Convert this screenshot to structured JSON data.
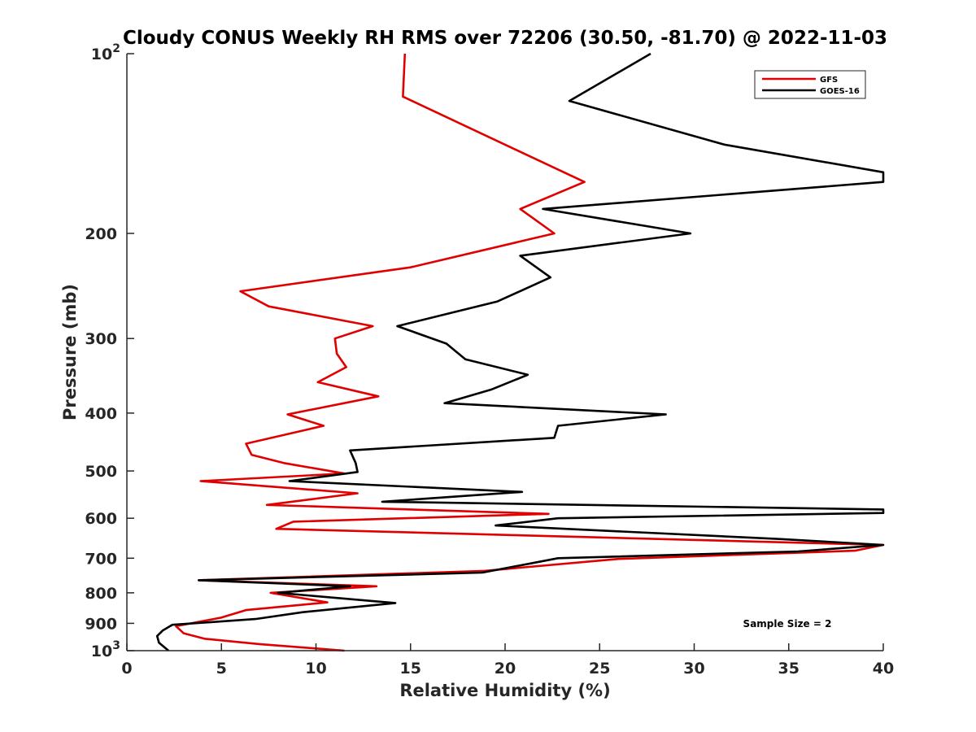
{
  "chart_data": {
    "type": "line",
    "title": "Cloudy CONUS Weekly RH RMS over 72206 (30.50, -81.70) @ 2022-11-03",
    "xlabel": "Relative Humidity (%)",
    "ylabel": "Pressure (mb)",
    "xlim": [
      0,
      40
    ],
    "ylim": [
      100,
      1000
    ],
    "yscale": "log",
    "y_reversed": true,
    "grid": false,
    "legend_position": "top-right",
    "x_ticks": [
      "0",
      "5",
      "10",
      "15",
      "20",
      "25",
      "30",
      "35",
      "40"
    ],
    "y_ticks": [
      {
        "value": 100,
        "base": "10",
        "exp": "2"
      },
      {
        "value": 200,
        "label": "200"
      },
      {
        "value": 300,
        "label": "300"
      },
      {
        "value": 400,
        "label": "400"
      },
      {
        "value": 500,
        "label": "500"
      },
      {
        "value": 600,
        "label": "600"
      },
      {
        "value": 700,
        "label": "700"
      },
      {
        "value": 800,
        "label": "800"
      },
      {
        "value": 900,
        "label": "900"
      },
      {
        "value": 1000,
        "base": "10",
        "exp": "3"
      }
    ],
    "annotation": "Sample Size = 2",
    "series": [
      {
        "name": "GFS",
        "color": "#e00000",
        "points": [
          [
            14.7,
            100
          ],
          [
            14.6,
            118
          ],
          [
            24.2,
            164
          ],
          [
            20.8,
            182
          ],
          [
            22.6,
            200
          ],
          [
            15.0,
            228
          ],
          [
            6.0,
            250
          ],
          [
            7.5,
            265
          ],
          [
            13.0,
            286
          ],
          [
            11.0,
            300
          ],
          [
            11.1,
            318
          ],
          [
            11.6,
            335
          ],
          [
            10.1,
            355
          ],
          [
            13.3,
            375
          ],
          [
            8.5,
            402
          ],
          [
            10.4,
            420
          ],
          [
            6.3,
            450
          ],
          [
            6.6,
            470
          ],
          [
            8.3,
            485
          ],
          [
            11.5,
            505
          ],
          [
            3.9,
            520
          ],
          [
            12.2,
            545
          ],
          [
            7.4,
            570
          ],
          [
            22.3,
            590
          ],
          [
            8.8,
            608
          ],
          [
            7.9,
            625
          ],
          [
            40.0,
            665
          ],
          [
            38.5,
            680
          ],
          [
            26.0,
            702
          ],
          [
            18.9,
            735
          ],
          [
            3.8,
            762
          ],
          [
            13.2,
            780
          ],
          [
            7.6,
            800
          ],
          [
            10.6,
            830
          ],
          [
            6.3,
            855
          ],
          [
            5.0,
            880
          ],
          [
            2.6,
            910
          ],
          [
            3.0,
            935
          ],
          [
            4.1,
            955
          ],
          [
            7.0,
            975
          ],
          [
            11.5,
            1000
          ]
        ]
      },
      {
        "name": "GOES-16",
        "color": "#000000",
        "points": [
          [
            27.7,
            100
          ],
          [
            23.4,
            120
          ],
          [
            31.6,
            142
          ],
          [
            40.0,
            158
          ],
          [
            40.0,
            164
          ],
          [
            22.0,
            182
          ],
          [
            29.8,
            200
          ],
          [
            20.8,
            218
          ],
          [
            22.4,
            237
          ],
          [
            19.6,
            260
          ],
          [
            14.3,
            286
          ],
          [
            16.9,
            306
          ],
          [
            17.9,
            325
          ],
          [
            21.2,
            345
          ],
          [
            19.3,
            365
          ],
          [
            16.8,
            385
          ],
          [
            28.5,
            402
          ],
          [
            22.8,
            420
          ],
          [
            22.6,
            440
          ],
          [
            11.8,
            462
          ],
          [
            12.1,
            485
          ],
          [
            12.2,
            502
          ],
          [
            8.6,
            520
          ],
          [
            20.9,
            542
          ],
          [
            13.5,
            563
          ],
          [
            40.0,
            580
          ],
          [
            40.0,
            588
          ],
          [
            22.8,
            600
          ],
          [
            19.5,
            617
          ],
          [
            34.5,
            650
          ],
          [
            40.0,
            665
          ],
          [
            35.5,
            682
          ],
          [
            22.8,
            700
          ],
          [
            18.8,
            740
          ],
          [
            3.8,
            762
          ],
          [
            11.8,
            780
          ],
          [
            8.0,
            800
          ],
          [
            14.2,
            832
          ],
          [
            9.3,
            862
          ],
          [
            6.8,
            885
          ],
          [
            2.4,
            905
          ],
          [
            1.9,
            925
          ],
          [
            1.6,
            945
          ],
          [
            1.7,
            970
          ],
          [
            2.2,
            1000
          ]
        ]
      }
    ]
  }
}
